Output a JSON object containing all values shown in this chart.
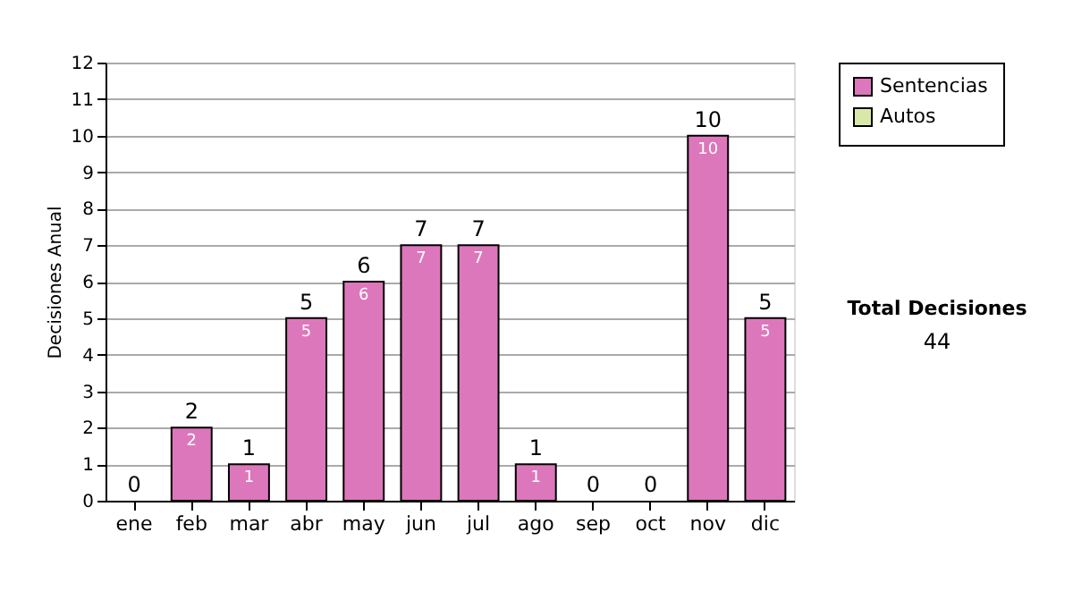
{
  "chart_data": {
    "type": "bar",
    "stacked": true,
    "ylabel": "Decisiones Anual",
    "categories": [
      "ene",
      "feb",
      "mar",
      "abr",
      "may",
      "jun",
      "jul",
      "ago",
      "sep",
      "oct",
      "nov",
      "dic"
    ],
    "series": [
      {
        "name": "Sentencias",
        "color": "#dd77bb",
        "values": [
          0,
          2,
          1,
          5,
          6,
          7,
          7,
          1,
          0,
          0,
          10,
          5
        ],
        "value_labels": [
          null,
          "2",
          "1",
          "5",
          "6",
          "7",
          "7",
          "1",
          null,
          null,
          "10",
          "5"
        ]
      },
      {
        "name": "Autos",
        "color": "#d8e8a8",
        "values": [
          0,
          0,
          0,
          0,
          0,
          0,
          0,
          0,
          0,
          0,
          0,
          0
        ]
      }
    ],
    "totals": [
      "0",
      "2",
      "1",
      "5",
      "6",
      "7",
      "7",
      "1",
      "0",
      "0",
      "10",
      "5"
    ],
    "ylim": [
      0,
      12
    ],
    "yticks": [
      0,
      1,
      2,
      3,
      4,
      5,
      6,
      7,
      8,
      9,
      10,
      11,
      12
    ],
    "grid": "y",
    "legend": "right",
    "annotations": [
      "Total Decisiones",
      "44"
    ]
  }
}
